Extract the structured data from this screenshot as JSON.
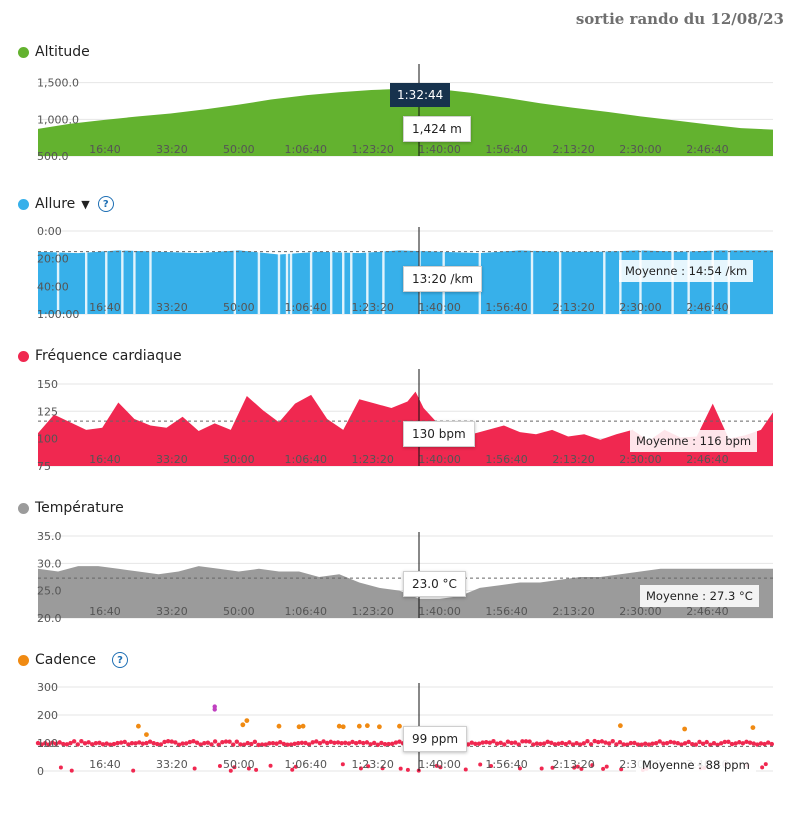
{
  "page_title": "sortie rando du 12/08/23",
  "colors": {
    "altitude": "#63b22f",
    "allure": "#37b0ea",
    "fc": "#f02850",
    "temp": "#9b9b9b",
    "cadence": "#f08a12",
    "cadence_high": "#c040c0",
    "cursor": "#111111"
  },
  "x_ticks": [
    "16:40",
    "33:20",
    "50:00",
    "1:06:40",
    "1:23:20",
    "1:40:00",
    "1:56:40",
    "2:13:20",
    "2:30:00",
    "2:46:40"
  ],
  "cursor_time": "1:32:44",
  "chart_data": [
    {
      "id": "altitude",
      "type": "area",
      "title": "Altitude",
      "ylim": [
        500,
        1700
      ],
      "yticks": [
        "500.0",
        "1,000.0",
        "1,500.0"
      ],
      "ytick_values": [
        500,
        1000,
        1500
      ],
      "x_minutes": [
        0,
        8,
        16,
        25,
        33,
        42,
        50,
        58,
        67,
        75,
        83,
        92,
        100,
        108,
        117,
        125,
        133,
        142,
        150,
        158,
        167,
        175,
        183
      ],
      "y": [
        870,
        940,
        990,
        1040,
        1080,
        1140,
        1200,
        1270,
        1330,
        1370,
        1400,
        1420,
        1410,
        1360,
        1290,
        1220,
        1160,
        1100,
        1040,
        990,
        930,
        880,
        860
      ],
      "tooltip": "1,424 m"
    },
    {
      "id": "allure",
      "type": "area",
      "title": "Allure",
      "inverted": true,
      "ylim": [
        0,
        60
      ],
      "yticks": [
        "0:00",
        "20:00",
        "40:00",
        "1:00:00"
      ],
      "ytick_values": [
        0,
        20,
        40,
        60
      ],
      "average": 14.9,
      "average_label": "Moyenne : 14:54 /km",
      "x_minutes": [
        0,
        10,
        20,
        30,
        40,
        50,
        60,
        70,
        80,
        90,
        100,
        110,
        120,
        130,
        140,
        150,
        160,
        170,
        183
      ],
      "y": [
        15,
        16,
        14,
        15,
        16,
        14,
        17,
        15,
        16,
        14,
        15,
        16,
        14,
        15,
        15,
        14,
        15,
        14,
        14
      ],
      "spikes_minutes": [
        5,
        12,
        17,
        21,
        24,
        28,
        49,
        55,
        60,
        62,
        63,
        68,
        73,
        76,
        78,
        82,
        86,
        95,
        101,
        110,
        123,
        130,
        141,
        145,
        150,
        158,
        162,
        168,
        172
      ],
      "tooltip": "13:20 /km"
    },
    {
      "id": "fc",
      "type": "area",
      "title": "Fréquence cardiaque",
      "ylim": [
        75,
        160
      ],
      "yticks": [
        "75",
        "100",
        "125",
        "150"
      ],
      "ytick_values": [
        75,
        100,
        125,
        150
      ],
      "average": 116,
      "average_label": "Moyenne : 116 bpm",
      "x_minutes": [
        0,
        4,
        8,
        12,
        16,
        20,
        24,
        28,
        32,
        36,
        40,
        44,
        48,
        52,
        56,
        60,
        64,
        68,
        72,
        76,
        80,
        84,
        88,
        92,
        94,
        96,
        100,
        104,
        108,
        112,
        116,
        120,
        124,
        128,
        132,
        136,
        140,
        144,
        148,
        152,
        156,
        160,
        164,
        168,
        172,
        176,
        180,
        183
      ],
      "y": [
        105,
        122,
        115,
        108,
        110,
        133,
        118,
        112,
        110,
        120,
        107,
        114,
        108,
        139,
        126,
        115,
        132,
        140,
        118,
        108,
        136,
        132,
        128,
        134,
        143,
        128,
        112,
        110,
        104,
        108,
        112,
        106,
        104,
        108,
        102,
        104,
        99,
        104,
        108,
        98,
        108,
        101,
        102,
        132,
        100,
        103,
        108,
        124
      ],
      "tooltip": "130 bpm"
    },
    {
      "id": "temp",
      "type": "area",
      "title": "Température",
      "ylim": [
        20,
        35
      ],
      "yticks": [
        "20.0",
        "25.0",
        "30.0",
        "35.0"
      ],
      "ytick_values": [
        20,
        25,
        30,
        35
      ],
      "average": 27.3,
      "average_label": "Moyenne : 27.3 °C",
      "x_minutes": [
        0,
        5,
        10,
        15,
        20,
        25,
        30,
        35,
        40,
        45,
        50,
        55,
        60,
        65,
        70,
        75,
        80,
        85,
        90,
        95,
        100,
        105,
        110,
        115,
        120,
        125,
        130,
        135,
        140,
        145,
        150,
        155,
        160,
        165,
        170,
        175,
        180,
        183
      ],
      "y": [
        29.0,
        28.5,
        29.5,
        29.5,
        29.0,
        28.5,
        28.0,
        28.5,
        29.5,
        29.0,
        28.5,
        29.0,
        28.5,
        28.5,
        27.5,
        28.0,
        26.5,
        25.5,
        25.0,
        23.5,
        23.5,
        24.0,
        25.5,
        26.0,
        26.5,
        26.5,
        27.0,
        27.5,
        27.5,
        28.0,
        28.5,
        29.0,
        29.0,
        29.0,
        29.0,
        29.0,
        29.0,
        29.0
      ],
      "tooltip": "23.0 °C"
    },
    {
      "id": "cadence",
      "type": "scatter",
      "title": "Cadence",
      "ylim": [
        0,
        300
      ],
      "yticks": [
        "0",
        "100",
        "200",
        "300"
      ],
      "ytick_values": [
        0,
        100,
        200,
        300
      ],
      "average": 88,
      "average_label": "Moyenne : 88 ppm",
      "baseline": 100,
      "high_points": [
        [
          25,
          160
        ],
        [
          27,
          130
        ],
        [
          51,
          165
        ],
        [
          52,
          180
        ],
        [
          60,
          160
        ],
        [
          65,
          158
        ],
        [
          66,
          160
        ],
        [
          75,
          160
        ],
        [
          76,
          158
        ],
        [
          80,
          160
        ],
        [
          82,
          162
        ],
        [
          85,
          158
        ],
        [
          90,
          160
        ],
        [
          145,
          162
        ],
        [
          161,
          150
        ],
        [
          178,
          155
        ]
      ],
      "outlier_points": [
        [
          44,
          220
        ],
        [
          44,
          230
        ]
      ],
      "tooltip": "99 ppm"
    }
  ]
}
